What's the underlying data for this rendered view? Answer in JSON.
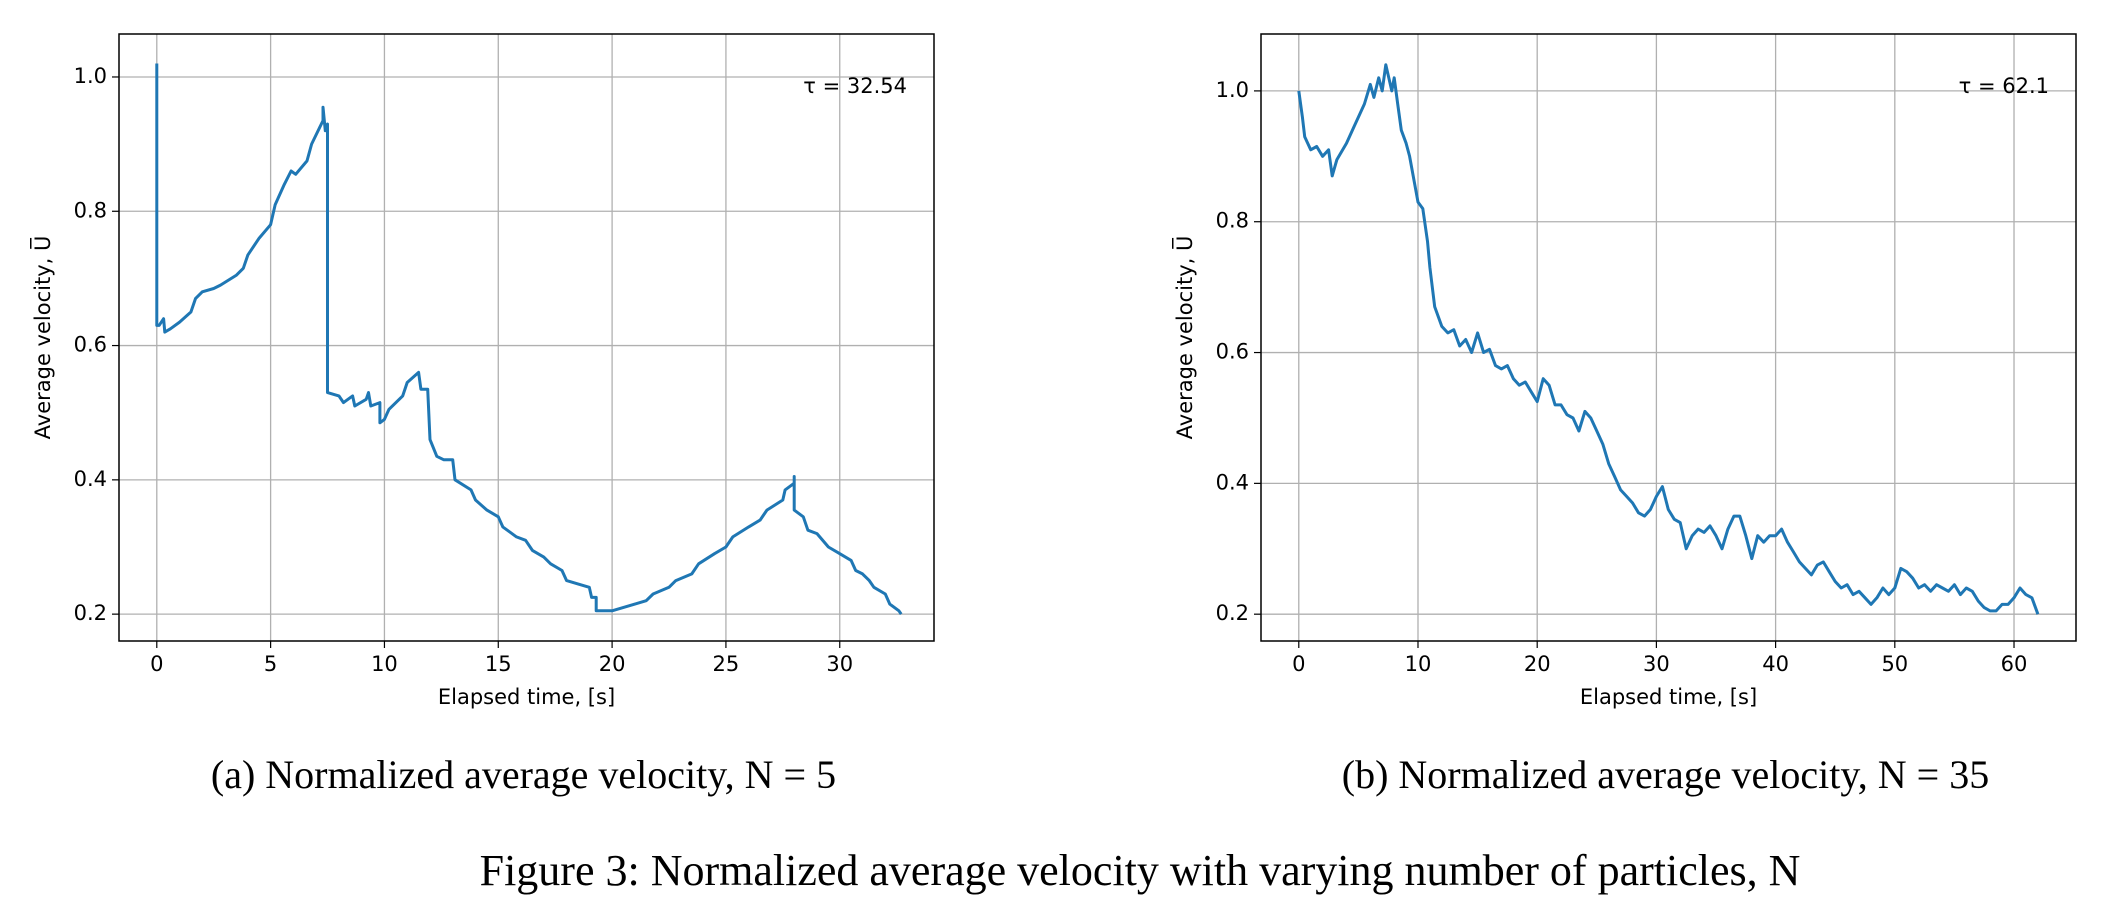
{
  "chart_data": [
    {
      "type": "line",
      "color": "#1f77b4",
      "grid": true,
      "xlabel": "Elapsed time, [s]",
      "ylabel": "Average velocity, U̅",
      "annotation": "τ = 32.54",
      "caption": "(a) Normalized average velocity, N = 5",
      "xlim": [
        -1.66,
        34.14
      ],
      "ylim": [
        0.16,
        1.064
      ],
      "xticks": [
        0,
        5,
        10,
        15,
        20,
        25,
        30
      ],
      "yticks": [
        0.2,
        0.4,
        0.6,
        0.8,
        {
          "value": 1,
          "label": "1.0"
        }
      ],
      "x": [
        0,
        0,
        0.1,
        0.3,
        0.35,
        0.6,
        1,
        1.5,
        1.7,
        2,
        2.5,
        2.8,
        3.5,
        3.8,
        4,
        4.5,
        5,
        5.2,
        5.6,
        5.9,
        6.1,
        6.6,
        6.8,
        7.3,
        7.3,
        7.4,
        7.5,
        7.5,
        8,
        8.2,
        8.6,
        8.7,
        9.2,
        9.3,
        9.4,
        9.8,
        9.8,
        10,
        10.2,
        10.8,
        11,
        11.5,
        11.6,
        11.9,
        12,
        12.3,
        12.6,
        13,
        13.1,
        13.8,
        14,
        14.5,
        15,
        15.2,
        15.8,
        16.2,
        16.5,
        17,
        17.3,
        17.8,
        18,
        18.5,
        19,
        19.1,
        19.3,
        19.3,
        20,
        20.5,
        21,
        21.5,
        21.8,
        22.5,
        22.8,
        23.5,
        23.8,
        24.5,
        25,
        25.3,
        26,
        26.5,
        26.8,
        27.5,
        27.6,
        28,
        28,
        28,
        28.4,
        28.6,
        29,
        29.5,
        30,
        30.5,
        30.7,
        31,
        31.3,
        31.5,
        32,
        32.2,
        32.6,
        32.7
      ],
      "values": [
        1.02,
        0.63,
        0.63,
        0.64,
        0.62,
        0.625,
        0.635,
        0.65,
        0.67,
        0.68,
        0.685,
        0.69,
        0.705,
        0.715,
        0.735,
        0.76,
        0.78,
        0.81,
        0.84,
        0.86,
        0.855,
        0.875,
        0.9,
        0.935,
        0.955,
        0.92,
        0.93,
        0.53,
        0.525,
        0.515,
        0.525,
        0.51,
        0.52,
        0.53,
        0.51,
        0.515,
        0.485,
        0.49,
        0.505,
        0.525,
        0.545,
        0.56,
        0.535,
        0.535,
        0.46,
        0.435,
        0.43,
        0.43,
        0.4,
        0.385,
        0.37,
        0.355,
        0.345,
        0.33,
        0.315,
        0.31,
        0.295,
        0.285,
        0.275,
        0.265,
        0.25,
        0.245,
        0.24,
        0.225,
        0.225,
        0.205,
        0.205,
        0.21,
        0.215,
        0.22,
        0.23,
        0.24,
        0.25,
        0.26,
        0.275,
        0.29,
        0.3,
        0.315,
        0.33,
        0.34,
        0.355,
        0.37,
        0.385,
        0.395,
        0.405,
        0.355,
        0.345,
        0.325,
        0.32,
        0.3,
        0.29,
        0.28,
        0.265,
        0.26,
        0.25,
        0.24,
        0.23,
        0.215,
        0.205,
        0.2
      ]
    },
    {
      "type": "line",
      "color": "#1f77b4",
      "grid": true,
      "xlabel": "Elapsed time, [s]",
      "ylabel": "Average velocity, U̅",
      "annotation": "τ = 62.1",
      "caption": "(b) Normalized average velocity, N = 35",
      "xlim": [
        -3.17,
        65.2
      ],
      "ylim": [
        0.159,
        1.087
      ],
      "xticks": [
        0,
        10,
        20,
        30,
        40,
        50,
        60
      ],
      "yticks": [
        0.2,
        0.4,
        0.6,
        0.8,
        {
          "value": 1,
          "label": "1.0"
        }
      ],
      "x": [
        0,
        0.3,
        0.5,
        1,
        1.5,
        2,
        2.5,
        2.8,
        3.2,
        4,
        4.5,
        5,
        5.5,
        6,
        6.3,
        6.7,
        7,
        7.3,
        7.8,
        8,
        8.3,
        8.6,
        9,
        9.3,
        9.7,
        10,
        10.4,
        10.8,
        11,
        11.4,
        12,
        12.5,
        13,
        13.5,
        14,
        14.5,
        15,
        15.5,
        16,
        16.5,
        17,
        17.5,
        18,
        18.5,
        19,
        19.5,
        20,
        20.5,
        21,
        21.5,
        22,
        22.5,
        23,
        23.5,
        24,
        24.5,
        25,
        25.5,
        26,
        26.5,
        27,
        27.5,
        28,
        28.5,
        29,
        29.5,
        30,
        30.5,
        31,
        31.5,
        32,
        32.5,
        33,
        33.5,
        34,
        34.5,
        35,
        35.5,
        36,
        36.5,
        37,
        37.5,
        38,
        38.5,
        39,
        39.5,
        40,
        40.5,
        41,
        41.5,
        42,
        42.5,
        43,
        43.5,
        44,
        44.5,
        45,
        45.5,
        46,
        46.5,
        47,
        47.5,
        48,
        48.5,
        49,
        49.5,
        50,
        50.5,
        51,
        51.5,
        52,
        52.5,
        53,
        53.5,
        54,
        54.5,
        55,
        55.5,
        56,
        56.5,
        57,
        57.5,
        58,
        58.5,
        59,
        59.5,
        60,
        60.5,
        61,
        61.5,
        62
      ],
      "values": [
        1.0,
        0.96,
        0.93,
        0.91,
        0.915,
        0.9,
        0.91,
        0.87,
        0.895,
        0.92,
        0.94,
        0.96,
        0.98,
        1.01,
        0.99,
        1.02,
        1.0,
        1.04,
        1.0,
        1.02,
        0.98,
        0.94,
        0.92,
        0.9,
        0.86,
        0.83,
        0.82,
        0.77,
        0.73,
        0.67,
        0.64,
        0.63,
        0.635,
        0.61,
        0.62,
        0.6,
        0.63,
        0.6,
        0.605,
        0.58,
        0.575,
        0.58,
        0.56,
        0.55,
        0.555,
        0.54,
        0.525,
        0.56,
        0.55,
        0.52,
        0.52,
        0.505,
        0.5,
        0.48,
        0.51,
        0.5,
        0.48,
        0.46,
        0.43,
        0.41,
        0.39,
        0.38,
        0.37,
        0.355,
        0.35,
        0.36,
        0.38,
        0.395,
        0.36,
        0.345,
        0.34,
        0.3,
        0.32,
        0.33,
        0.325,
        0.335,
        0.32,
        0.3,
        0.33,
        0.35,
        0.35,
        0.32,
        0.285,
        0.32,
        0.31,
        0.32,
        0.32,
        0.33,
        0.31,
        0.295,
        0.28,
        0.27,
        0.26,
        0.275,
        0.28,
        0.265,
        0.25,
        0.24,
        0.245,
        0.23,
        0.235,
        0.225,
        0.215,
        0.225,
        0.24,
        0.23,
        0.24,
        0.27,
        0.265,
        0.255,
        0.24,
        0.245,
        0.235,
        0.245,
        0.24,
        0.235,
        0.245,
        0.23,
        0.24,
        0.235,
        0.22,
        0.21,
        0.205,
        0.205,
        0.215,
        0.215,
        0.225,
        0.24,
        0.23,
        0.225,
        0.2
      ]
    }
  ],
  "figure_caption": "Figure 3: Normalized average velocity with varying number of particles, N"
}
